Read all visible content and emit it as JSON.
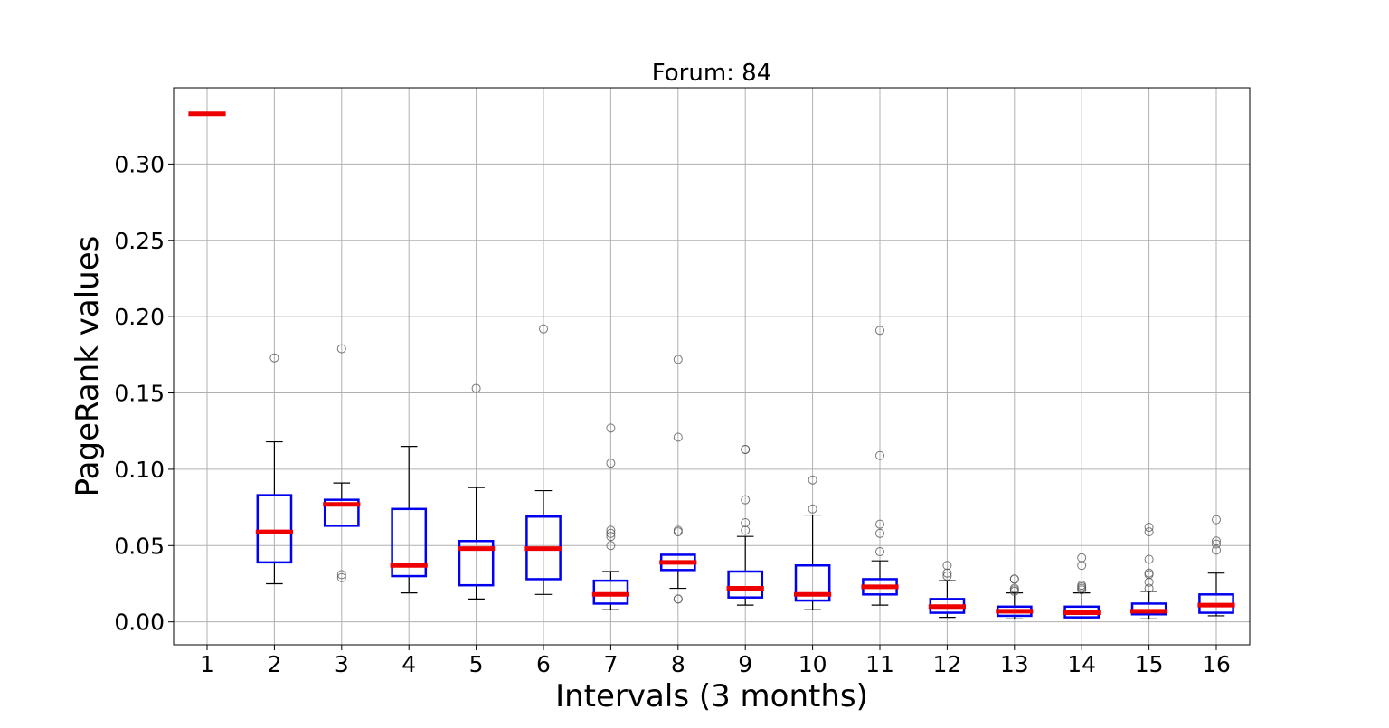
{
  "chart_data": {
    "type": "box",
    "title": "Forum: 84",
    "xlabel": "Intervals (3 months)",
    "ylabel": "PageRank values",
    "categories": [
      "1",
      "2",
      "3",
      "4",
      "5",
      "6",
      "7",
      "8",
      "9",
      "10",
      "11",
      "12",
      "13",
      "14",
      "15",
      "16"
    ],
    "ylim": [
      -0.015,
      0.35
    ],
    "yticks": [
      0.0,
      0.05,
      0.1,
      0.15,
      0.2,
      0.25,
      0.3
    ],
    "ytick_labels": [
      "0.00",
      "0.05",
      "0.10",
      "0.15",
      "0.20",
      "0.25",
      "0.30"
    ],
    "grid": true,
    "colors": {
      "box": "#0000ee",
      "median": "#ee0000",
      "whisker": "#000000",
      "flier": "#555555",
      "grid": "#b0b0b0"
    },
    "boxes": [
      {
        "category": "1",
        "q1": 0.333,
        "median": 0.333,
        "q3": 0.333,
        "whislo": 0.333,
        "whishi": 0.333,
        "fliers": []
      },
      {
        "category": "2",
        "q1": 0.039,
        "median": 0.059,
        "q3": 0.083,
        "whislo": 0.025,
        "whishi": 0.118,
        "fliers": [
          0.173
        ]
      },
      {
        "category": "3",
        "q1": 0.063,
        "median": 0.077,
        "q3": 0.08,
        "whislo": 0.063,
        "whishi": 0.091,
        "fliers": [
          0.179,
          0.031,
          0.029
        ]
      },
      {
        "category": "4",
        "q1": 0.03,
        "median": 0.037,
        "q3": 0.074,
        "whislo": 0.019,
        "whishi": 0.115,
        "fliers": []
      },
      {
        "category": "5",
        "q1": 0.024,
        "median": 0.048,
        "q3": 0.053,
        "whislo": 0.015,
        "whishi": 0.088,
        "fliers": [
          0.153
        ]
      },
      {
        "category": "6",
        "q1": 0.028,
        "median": 0.048,
        "q3": 0.069,
        "whislo": 0.018,
        "whishi": 0.086,
        "fliers": [
          0.192
        ]
      },
      {
        "category": "7",
        "q1": 0.012,
        "median": 0.018,
        "q3": 0.027,
        "whislo": 0.008,
        "whishi": 0.033,
        "fliers": [
          0.127,
          0.104,
          0.06,
          0.058,
          0.056,
          0.05
        ]
      },
      {
        "category": "8",
        "q1": 0.034,
        "median": 0.039,
        "q3": 0.044,
        "whislo": 0.022,
        "whishi": 0.044,
        "fliers": [
          0.172,
          0.121,
          0.06,
          0.059,
          0.015,
          0.015
        ]
      },
      {
        "category": "9",
        "q1": 0.016,
        "median": 0.022,
        "q3": 0.033,
        "whislo": 0.011,
        "whishi": 0.056,
        "fliers": [
          0.113,
          0.113,
          0.08,
          0.065,
          0.06
        ]
      },
      {
        "category": "10",
        "q1": 0.014,
        "median": 0.018,
        "q3": 0.037,
        "whislo": 0.008,
        "whishi": 0.07,
        "fliers": [
          0.093,
          0.074
        ]
      },
      {
        "category": "11",
        "q1": 0.018,
        "median": 0.023,
        "q3": 0.028,
        "whislo": 0.011,
        "whishi": 0.04,
        "fliers": [
          0.191,
          0.109,
          0.064,
          0.058,
          0.046
        ]
      },
      {
        "category": "12",
        "q1": 0.006,
        "median": 0.01,
        "q3": 0.015,
        "whislo": 0.003,
        "whishi": 0.027,
        "fliers": [
          0.037,
          0.032,
          0.03
        ]
      },
      {
        "category": "13",
        "q1": 0.004,
        "median": 0.007,
        "q3": 0.01,
        "whislo": 0.002,
        "whishi": 0.019,
        "fliers": [
          0.028,
          0.028,
          0.022,
          0.021,
          0.02
        ]
      },
      {
        "category": "14",
        "q1": 0.003,
        "median": 0.006,
        "q3": 0.01,
        "whislo": 0.002,
        "whishi": 0.019,
        "fliers": [
          0.042,
          0.037,
          0.024,
          0.023,
          0.022,
          0.021
        ]
      },
      {
        "category": "15",
        "q1": 0.005,
        "median": 0.007,
        "q3": 0.012,
        "whislo": 0.002,
        "whishi": 0.02,
        "fliers": [
          0.062,
          0.059,
          0.041,
          0.032,
          0.031,
          0.026,
          0.022
        ]
      },
      {
        "category": "16",
        "q1": 0.006,
        "median": 0.011,
        "q3": 0.018,
        "whislo": 0.004,
        "whishi": 0.032,
        "fliers": [
          0.067,
          0.053,
          0.051,
          0.047
        ]
      }
    ]
  }
}
